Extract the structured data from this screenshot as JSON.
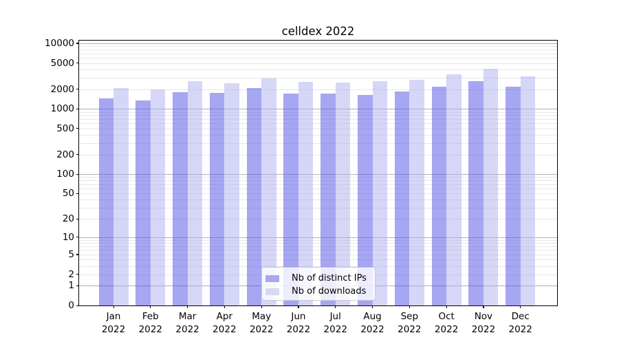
{
  "title": "celldex 2022",
  "chart_data": {
    "type": "bar",
    "title": "celldex 2022",
    "categories": [
      "Jan 2022",
      "Feb 2022",
      "Mar 2022",
      "Apr 2022",
      "May 2022",
      "Jun 2022",
      "Jul 2022",
      "Aug 2022",
      "Sep 2022",
      "Oct 2022",
      "Nov 2022",
      "Dec 2022"
    ],
    "series": [
      {
        "name": "Nb of distinct IPs",
        "values": [
          1440,
          1350,
          1790,
          1760,
          2070,
          1730,
          1690,
          1630,
          1840,
          2190,
          2630,
          2160
        ]
      },
      {
        "name": "Nb of downloads",
        "values": [
          2070,
          1990,
          2630,
          2430,
          2920,
          2590,
          2490,
          2630,
          2740,
          3360,
          4100,
          3150
        ]
      }
    ],
    "xlabel": "",
    "ylabel": "",
    "yscale": "log1p",
    "y_ticks": [
      0,
      1,
      2,
      5,
      10,
      20,
      50,
      100,
      200,
      500,
      1000,
      2000,
      5000,
      10000
    ],
    "ylim": [
      0,
      11000
    ],
    "grid": true,
    "legend_position": "lower center"
  },
  "colors": {
    "bar_distinct_ips": "rgba(85,85,230,0.52)",
    "bar_downloads": "rgba(173,173,240,0.5)",
    "legend_swatch_ips": "#a7a7ef",
    "legend_swatch_downloads": "#d7d7f6",
    "grid_major": "#b0b0b0",
    "grid_minor": "#e7e7e7",
    "spine": "#000000"
  }
}
